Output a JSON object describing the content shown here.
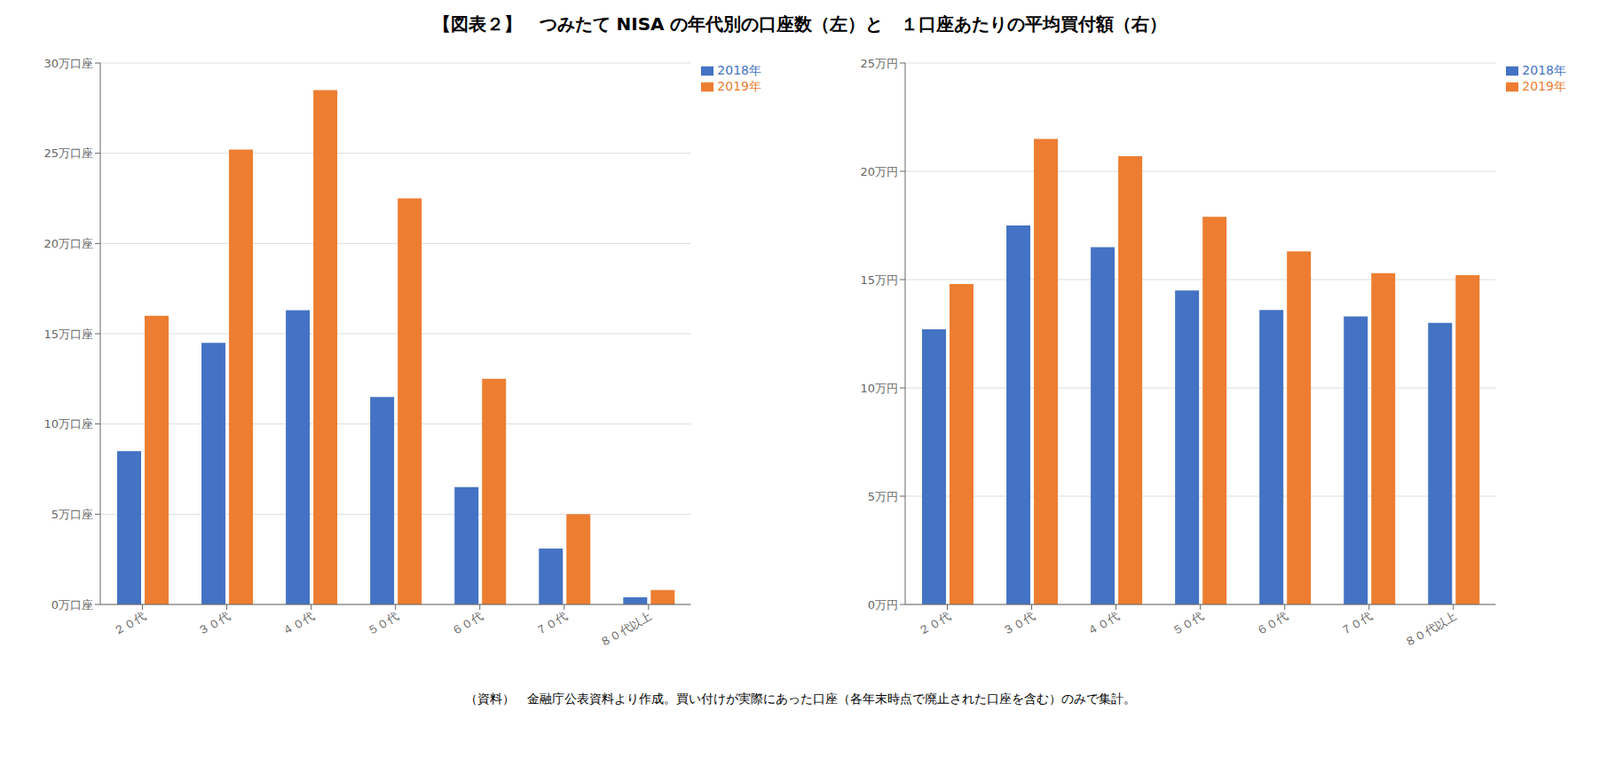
{
  "title": "【図表２】　つみたて NISA の年代別の口座数（左）と　１口座あたりの平均買付額（右）",
  "annotations": [
    "（資料）　金融庁公表資料より作成。買い付けが実際にあった口座（各年末時点で廃止された口座を含む）のみで集計。"
  ],
  "chart_data": [
    {
      "type": "bar",
      "categories": [
        "２０代",
        "３０代",
        "４０代",
        "５０代",
        "６０代",
        "７０代",
        "８０代以上"
      ],
      "series": [
        {
          "name": "2018年",
          "color": "#4472C4",
          "values": [
            8.5,
            14.5,
            16.3,
            11.5,
            6.5,
            3.1,
            0.4
          ]
        },
        {
          "name": "2019年",
          "color": "#ED7D31",
          "values": [
            16.0,
            25.2,
            28.5,
            22.5,
            12.5,
            5.0,
            0.8
          ]
        }
      ],
      "ylim": [
        0,
        30
      ],
      "yticks": [
        {
          "value": 0,
          "label": "0万口座"
        },
        {
          "value": 5,
          "label": "5万口座"
        },
        {
          "value": 10,
          "label": "10万口座"
        },
        {
          "value": 15,
          "label": "15万口座"
        },
        {
          "value": 20,
          "label": "20万口座"
        },
        {
          "value": 25,
          "label": "25万口座"
        },
        {
          "value": 30,
          "label": "30万口座"
        }
      ],
      "grid": true,
      "legend": "upper right"
    },
    {
      "type": "bar",
      "categories": [
        "２０代",
        "３０代",
        "４０代",
        "５０代",
        "６０代",
        "７０代",
        "８０代以上"
      ],
      "series": [
        {
          "name": "2018年",
          "color": "#4472C4",
          "values": [
            12.7,
            17.5,
            16.5,
            14.5,
            13.6,
            13.3,
            13.0
          ]
        },
        {
          "name": "2019年",
          "color": "#ED7D31",
          "values": [
            14.8,
            21.5,
            20.7,
            17.9,
            16.3,
            15.3,
            15.2
          ]
        }
      ],
      "ylim": [
        0,
        25
      ],
      "yticks": [
        {
          "value": 0,
          "label": "0万円"
        },
        {
          "value": 5,
          "label": "5万円"
        },
        {
          "value": 10,
          "label": "10万円"
        },
        {
          "value": 15,
          "label": "15万円"
        },
        {
          "value": 20,
          "label": "20万円"
        },
        {
          "value": 25,
          "label": "25万円"
        }
      ],
      "grid": true,
      "legend": "upper right"
    }
  ]
}
